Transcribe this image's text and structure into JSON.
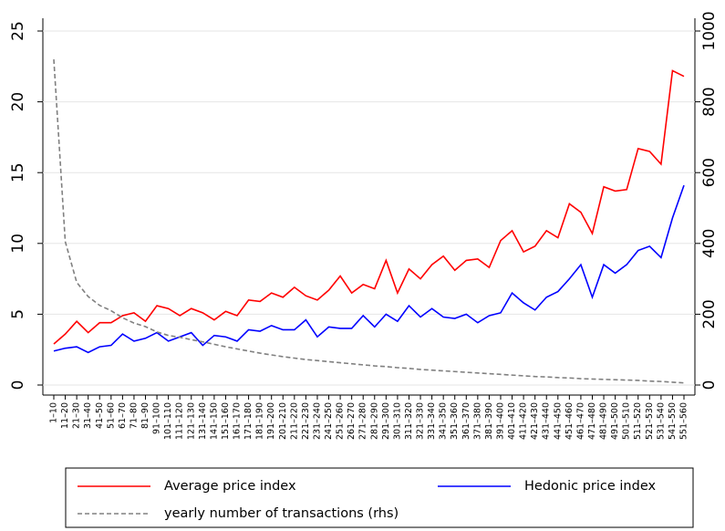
{
  "chart_data": {
    "type": "line",
    "categories": [
      "1–10",
      "11–20",
      "21–30",
      "31–40",
      "41–50",
      "51–60",
      "61–70",
      "71–80",
      "81–90",
      "91–100",
      "101–110",
      "111–120",
      "121–130",
      "131–140",
      "141–150",
      "151–160",
      "161–170",
      "171–180",
      "181–190",
      "191–200",
      "201–210",
      "211–220",
      "221–230",
      "231–240",
      "241–250",
      "251–260",
      "261–270",
      "271–280",
      "281–290",
      "291–300",
      "301–310",
      "311–320",
      "321–330",
      "331–340",
      "341–350",
      "351–360",
      "361–370",
      "371–380",
      "381–390",
      "391–400",
      "401–410",
      "411–420",
      "421–430",
      "431–440",
      "441–450",
      "451–460",
      "461–470",
      "471–480",
      "481–490",
      "491–500",
      "501–510",
      "511–520",
      "521–530",
      "531–540",
      "541–550",
      "551–560"
    ],
    "series": [
      {
        "name": "Average price index",
        "color": "#ff0000",
        "values": [
          2.9,
          3.6,
          4.5,
          3.7,
          4.4,
          4.4,
          4.9,
          5.1,
          4.5,
          5.6,
          5.4,
          4.9,
          5.4,
          5.1,
          4.6,
          5.2,
          4.9,
          6.0,
          5.9,
          6.5,
          6.2,
          6.9,
          6.3,
          6.0,
          6.7,
          7.7,
          6.5,
          7.1,
          6.8,
          8.8,
          6.5,
          8.2,
          7.5,
          8.5,
          9.1,
          8.1,
          8.8,
          8.9,
          8.3,
          10.2,
          10.9,
          9.4,
          9.8,
          10.9,
          10.4,
          12.8,
          12.2,
          10.7,
          14.0,
          13.7,
          13.8,
          16.7,
          16.5,
          15.6,
          22.2,
          21.8
        ]
      },
      {
        "name": "Hedonic price index",
        "color": "#0000ff",
        "values": [
          2.4,
          2.6,
          2.7,
          2.3,
          2.7,
          2.8,
          3.6,
          3.1,
          3.3,
          3.7,
          3.1,
          3.4,
          3.7,
          2.8,
          3.5,
          3.4,
          3.1,
          3.9,
          3.8,
          4.2,
          3.9,
          3.9,
          4.6,
          3.4,
          4.1,
          4.0,
          4.0,
          4.9,
          4.1,
          5.0,
          4.5,
          5.6,
          4.8,
          5.4,
          4.8,
          4.7,
          5.0,
          4.4,
          4.9,
          5.1,
          6.5,
          5.8,
          5.3,
          6.2,
          6.6,
          7.5,
          8.5,
          6.2,
          8.5,
          7.9,
          8.5,
          9.5,
          9.8,
          9.0,
          11.8,
          14.1
        ]
      },
      {
        "name": "yearly number of transactions (rhs)",
        "color": "#808080",
        "axis": "y2",
        "line_style": "dashed",
        "values": [
          920,
          405,
          290,
          250,
          225,
          210,
          190,
          175,
          165,
          150,
          140,
          135,
          128,
          122,
          115,
          108,
          102,
          96,
          90,
          85,
          80,
          76,
          72,
          69,
          66,
          63,
          60,
          57,
          54,
          52,
          49,
          47,
          44,
          42,
          40,
          38,
          36,
          34,
          32,
          30,
          28,
          26,
          24,
          23,
          21,
          20,
          18,
          17,
          16,
          15,
          14,
          13,
          11,
          10,
          8,
          6
        ]
      }
    ],
    "ylim": [
      0,
      25
    ],
    "yticks": [
      0,
      5,
      10,
      15,
      20,
      25
    ],
    "y2lim": [
      0,
      1000
    ],
    "y2ticks": [
      0,
      200,
      400,
      600,
      800,
      1000
    ],
    "grid": true
  }
}
